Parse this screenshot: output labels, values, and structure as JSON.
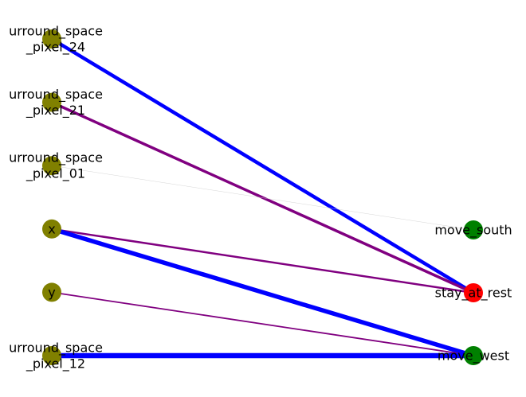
{
  "graph": {
    "colors": {
      "input_node": "#808000",
      "output_node": "#008000",
      "active_output_node": "#ff0000",
      "edge_blue": "#0000ff",
      "edge_purple": "#800080",
      "edge_faint": "#cccccc"
    },
    "input_nodes": [
      {
        "id": "surround_space_pixel_24",
        "label_lines": [
          "urround_space",
          "_pixel_24"
        ]
      },
      {
        "id": "surround_space_pixel_21",
        "label_lines": [
          "urround_space",
          "_pixel_21"
        ]
      },
      {
        "id": "surround_space_pixel_01",
        "label_lines": [
          "urround_space",
          "_pixel_01"
        ]
      },
      {
        "id": "x",
        "label_lines": [
          "x"
        ]
      },
      {
        "id": "y",
        "label_lines": [
          "y"
        ]
      },
      {
        "id": "surround_space_pixel_12",
        "label_lines": [
          "urround_space",
          "_pixel_12"
        ]
      }
    ],
    "output_nodes": [
      {
        "id": "move_south",
        "label": "move_south",
        "color": "#008000"
      },
      {
        "id": "stay_at_rest",
        "label": "stay_at_rest",
        "color": "#ff0000"
      },
      {
        "id": "move_west",
        "label": "move_west",
        "color": "#008000"
      }
    ],
    "edges": [
      {
        "from": "surround_space_pixel_24",
        "to": "stay_at_rest",
        "color": "#0000ff",
        "weight": 4.5
      },
      {
        "from": "surround_space_pixel_21",
        "to": "stay_at_rest",
        "color": "#800080",
        "weight": 3.5
      },
      {
        "from": "surround_space_pixel_01",
        "to": "move_south",
        "color": "#cccccc",
        "weight": 0.4
      },
      {
        "from": "x",
        "to": "stay_at_rest",
        "color": "#800080",
        "weight": 2.5
      },
      {
        "from": "x",
        "to": "move_west",
        "color": "#0000ff",
        "weight": 5.5
      },
      {
        "from": "y",
        "to": "move_west",
        "color": "#800080",
        "weight": 1.8
      },
      {
        "from": "surround_space_pixel_12",
        "to": "move_west",
        "color": "#0000ff",
        "weight": 6.5
      }
    ]
  }
}
